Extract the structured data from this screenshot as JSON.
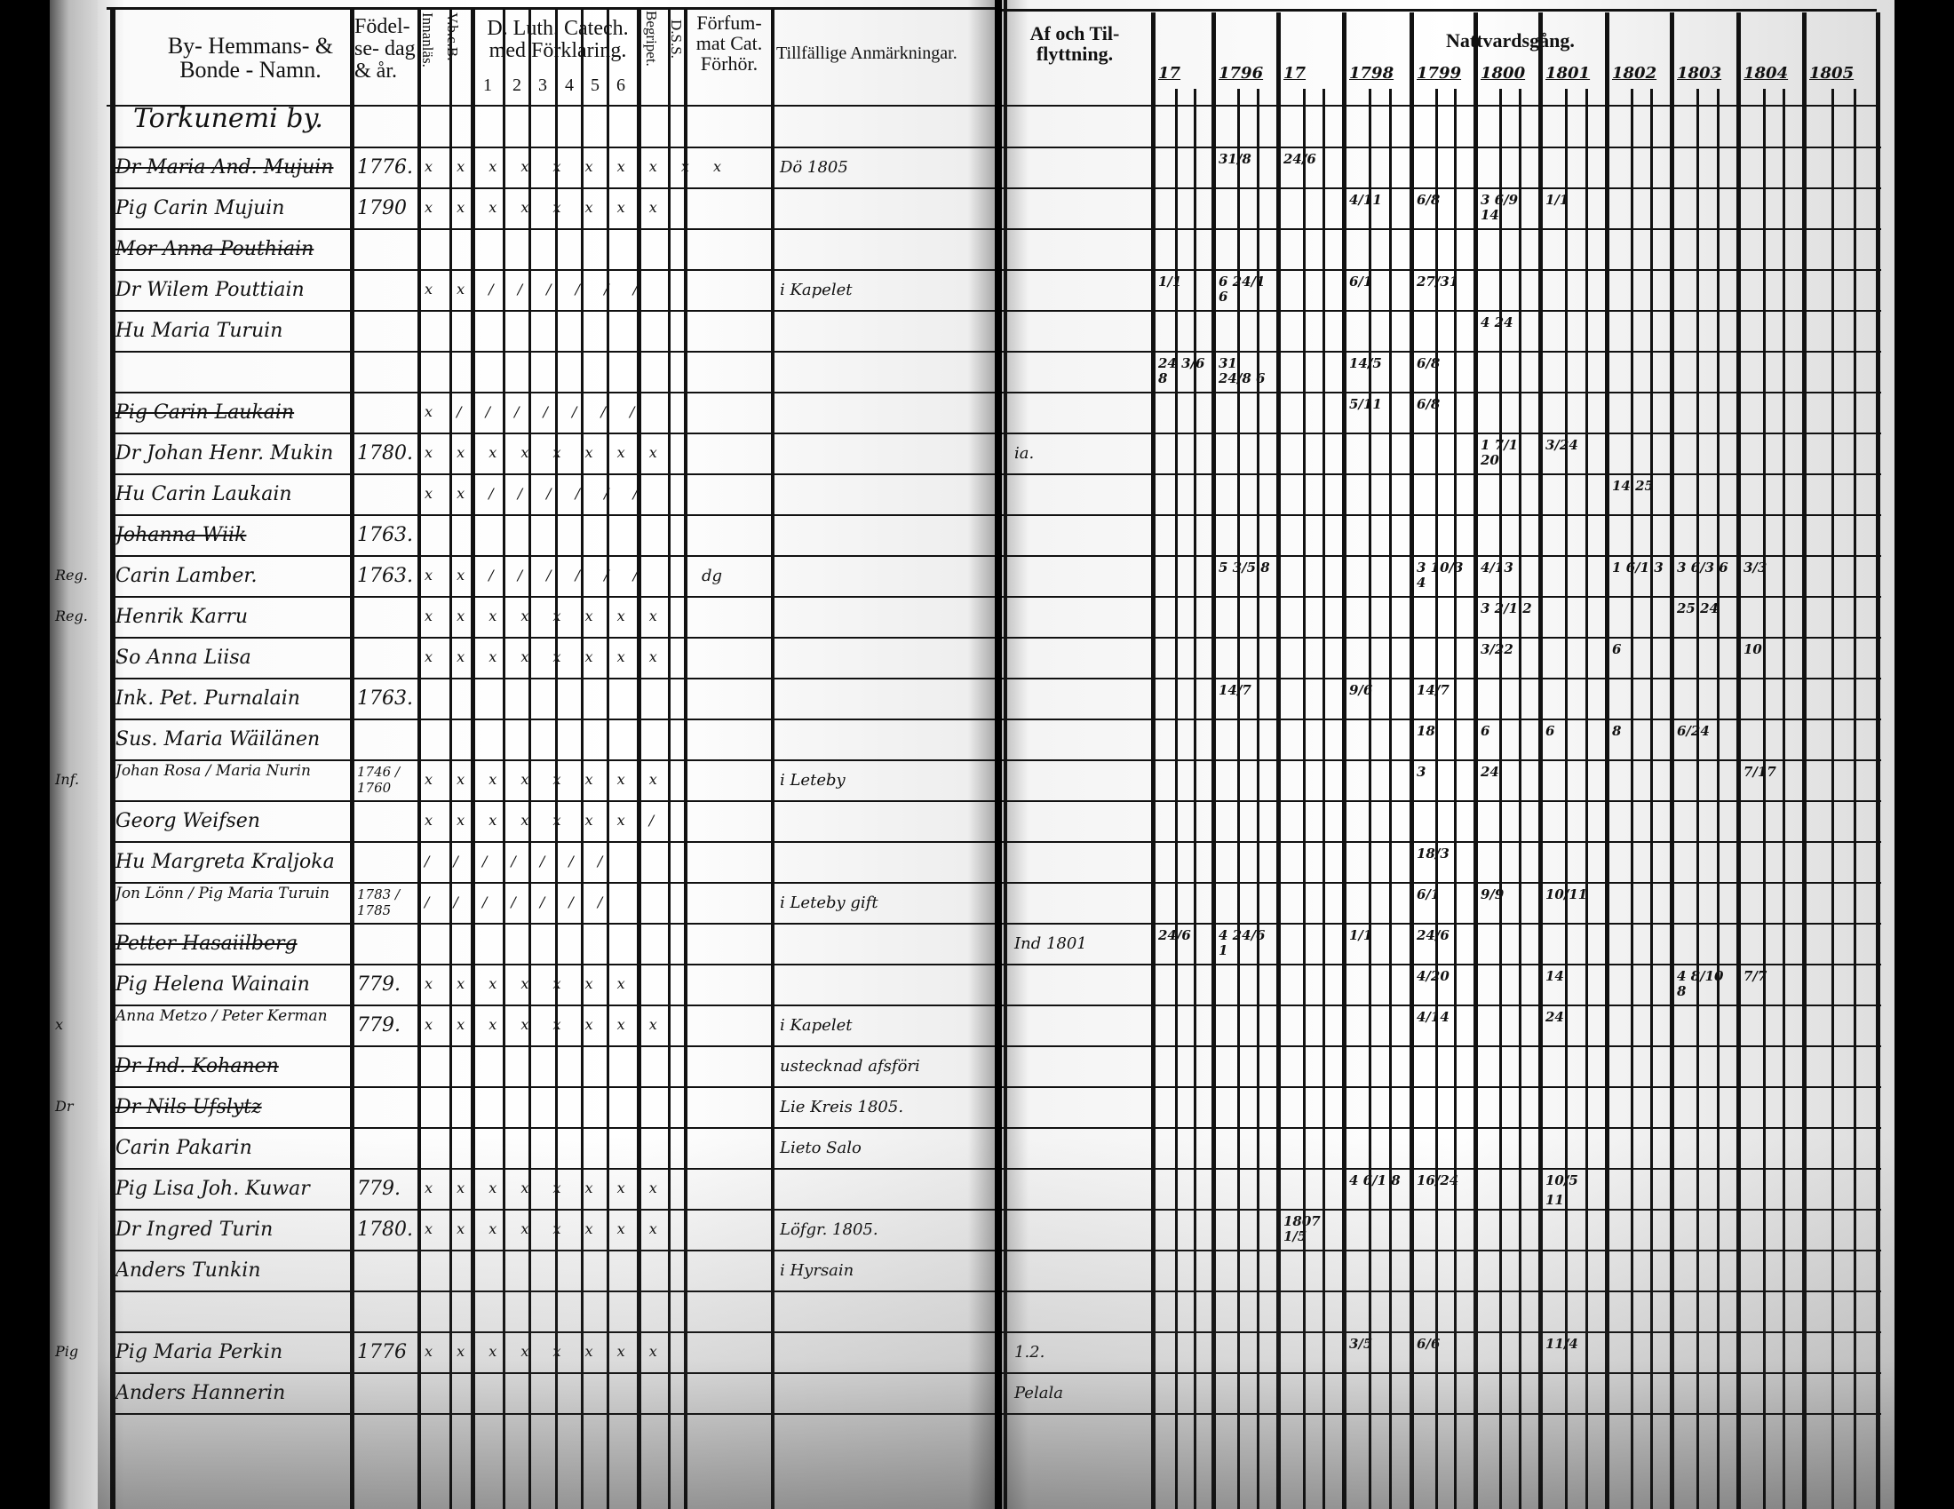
{
  "left_page": {
    "headers": {
      "name": "By- Hemmans- & Bonde - Namn.",
      "birth": "Födel- se- dag & år.",
      "reading": "Innanläs.",
      "vbcb": "V.b.c.B.",
      "catechism": "D. Luth. Catech. med Förklaring.",
      "catechism_parts": [
        "1",
        "2",
        "3",
        "4",
        "5",
        "6"
      ],
      "understanding": "Begripet.",
      "dss": "D.S.S.",
      "neglected": "Förfum- mat Cat. Förhör.",
      "remarks": "Tillfällige Anmärkningar."
    },
    "rows": [
      {
        "name": "Torkunemi by.",
        "year": "",
        "marks": "",
        "remark": "",
        "struck": false,
        "heading": true
      },
      {
        "name": "Dr Maria And. Mujuin",
        "year": "1776.",
        "marks": "x x x x x x x x x x",
        "remark": "Dö 1805",
        "struck": true
      },
      {
        "name": "Pig Carin Mujuin",
        "year": "1790",
        "marks": "x x x x x x x x",
        "remark": "",
        "struck": false
      },
      {
        "name": "Mor Anna Pouthiain",
        "year": "",
        "marks": "",
        "remark": "",
        "struck": true
      },
      {
        "name": "Dr Wilem Pouttiain",
        "year": "",
        "marks": "x x / / / / / /",
        "remark": "i Kapelet",
        "struck": false
      },
      {
        "name": "Hu Maria Turuin",
        "year": "",
        "marks": "",
        "remark": "",
        "struck": false
      },
      {
        "name": "",
        "year": "",
        "marks": "",
        "remark": "",
        "struck": false
      },
      {
        "name": "Pig Carin Laukain",
        "year": "",
        "marks": "x / / / / / / /",
        "remark": "",
        "struck": true
      },
      {
        "name": "Dr Johan Henr. Mukin",
        "year": "1780.",
        "marks": "x x x x x x x x",
        "remark": "",
        "struck": false
      },
      {
        "name": "Hu Carin Laukain",
        "year": "",
        "marks": "x x / / / / / /",
        "remark": "",
        "struck": false
      },
      {
        "name": "Johanna Wiik",
        "year": "1763.",
        "marks": "",
        "remark": "",
        "struck": true
      },
      {
        "name": "Carin Lamber.",
        "year": "1763.",
        "marks": "x x / / / / / /",
        "remark": "dg",
        "struck": false
      },
      {
        "name": "Henrik Karru",
        "year": "",
        "marks": "x x x x x x x x",
        "remark": "",
        "struck": false
      },
      {
        "name": "So Anna Liisa",
        "year": "",
        "marks": "x x x x x x x x",
        "remark": "",
        "struck": false
      },
      {
        "name": "Ink. Pet. Purnalain",
        "year": "1763.",
        "marks": "",
        "remark": "",
        "struck": false
      },
      {
        "name": "Sus. Maria Wäilänen",
        "year": "",
        "marks": "",
        "remark": "",
        "struck": false
      },
      {
        "name": "Johan Rosa / Maria Nurin",
        "year": "1746 / 1760",
        "marks": "x x x x x x x x",
        "remark": "i Leteby",
        "struck": false
      },
      {
        "name": "Georg Weifsen",
        "year": "",
        "marks": "x x x x x x x /",
        "remark": "",
        "struck": false
      },
      {
        "name": "Hu Margreta Kraljoka",
        "year": "",
        "marks": "/ / / / / / /",
        "remark": "",
        "struck": false
      },
      {
        "name": "Jon Lönn / Pig Maria Turuin",
        "year": "1783 / 1785",
        "marks": "/ / / / / / /",
        "remark": "i Leteby gift",
        "struck": false
      },
      {
        "name": "Petter Hasaiilberg",
        "year": "",
        "marks": "",
        "remark": "",
        "struck": true
      },
      {
        "name": "Pig Helena Wainain",
        "year": "779.",
        "marks": "x x x x x x x",
        "remark": "",
        "struck": false
      },
      {
        "name": "Anna Metzo / Peter Kerman",
        "year": "779.",
        "marks": "x x x x x x x x",
        "remark": "i Kapelet",
        "struck": false
      },
      {
        "name": "Dr Ind. Kohanen",
        "year": "",
        "marks": "",
        "remark": "ustecknad afsföri",
        "struck": true
      },
      {
        "name": "Dr Nils Ufslytz",
        "year": "",
        "marks": "",
        "remark": "Lie Kreis 1805.",
        "struck": true
      },
      {
        "name": "Carin Pakarin",
        "year": "",
        "marks": "",
        "remark": "Lieto Salo",
        "struck": false
      },
      {
        "name": "Pig Lisa Joh. Kuwar",
        "year": "779.",
        "marks": "x x x x x x x x",
        "remark": "",
        "struck": false
      },
      {
        "name": "Dr Ingred Turin",
        "year": "1780.",
        "marks": "x x x x x x x x",
        "remark": "Löfgr. 1805.",
        "struck": false
      },
      {
        "name": "Anders Tunkin",
        "year": "",
        "marks": "",
        "remark": "i Hyrsain",
        "struck": false
      },
      {
        "name": "",
        "year": "",
        "marks": "",
        "remark": "",
        "struck": false
      },
      {
        "name": "Pig Maria Perkin",
        "year": "1776",
        "marks": "x x x x x x x x",
        "remark": "",
        "struck": false
      },
      {
        "name": "Anders Hannerin",
        "year": "",
        "marks": "",
        "remark": "",
        "struck": false
      }
    ],
    "margin_notes": [
      {
        "row": 11,
        "text": "Reg."
      },
      {
        "row": 12,
        "text": "Reg."
      },
      {
        "row": 16,
        "text": "Inf."
      },
      {
        "row": 22,
        "text": "x"
      },
      {
        "row": 24,
        "text": "Dr"
      },
      {
        "row": 30,
        "text": "Pig"
      }
    ]
  },
  "right_page": {
    "headers": {
      "moving": "Af och Til- flyttning.",
      "communion": "Nattvardsgång.",
      "years": [
        "17",
        "1796",
        "17",
        "1798",
        "1799",
        "1800",
        "1801",
        "1802",
        "1803",
        "1804",
        "1805"
      ]
    },
    "moving_notes": [
      {
        "row": 8,
        "text": "ia."
      },
      {
        "row": 20,
        "text": "Ind 1801"
      },
      {
        "row": 30,
        "text": "1.2."
      },
      {
        "row": 31,
        "text": "Pelala"
      }
    ],
    "communion_entries": [
      {
        "row": 1,
        "year": "1796",
        "text": "31/8"
      },
      {
        "row": 1,
        "year": "17",
        "text": "24/6"
      },
      {
        "row": 2,
        "year": "1798",
        "text": "4/11"
      },
      {
        "row": 2,
        "year": "1799",
        "text": "6/8"
      },
      {
        "row": 2,
        "year": "1800",
        "text": "3 6/9 14"
      },
      {
        "row": 2,
        "year": "1801",
        "text": "1/1"
      },
      {
        "row": 4,
        "year": "1796",
        "text": "6 24/1 6"
      },
      {
        "row": 4,
        "year": "17",
        "text": "1/1"
      },
      {
        "row": 4,
        "year": "1798",
        "text": "6/1"
      },
      {
        "row": 4,
        "year": "1799",
        "text": "27/31"
      },
      {
        "row": 5,
        "year": "1800",
        "text": "4 24"
      },
      {
        "row": 6,
        "year": "1796",
        "text": "31 24/8 6"
      },
      {
        "row": 6,
        "year": "17",
        "text": "24 3/6 8"
      },
      {
        "row": 6,
        "year": "1798",
        "text": "14/5"
      },
      {
        "row": 6,
        "year": "1799",
        "text": "6/8"
      },
      {
        "row": 7,
        "year": "1798",
        "text": "5/11"
      },
      {
        "row": 7,
        "year": "1799",
        "text": "6/8"
      },
      {
        "row": 8,
        "year": "1800",
        "text": "1 7/1 20"
      },
      {
        "row": 8,
        "year": "1801",
        "text": "3/24"
      },
      {
        "row": 9,
        "year": "1802",
        "text": "14 25"
      },
      {
        "row": 11,
        "year": "1796",
        "text": "5 3/5 8"
      },
      {
        "row": 11,
        "year": "1799",
        "text": "3 10/3 4"
      },
      {
        "row": 11,
        "year": "1800",
        "text": "4/13"
      },
      {
        "row": 11,
        "year": "1802",
        "text": "1 6/1 3"
      },
      {
        "row": 11,
        "year": "1803",
        "text": "3 6/3 6"
      },
      {
        "row": 11,
        "year": "1804",
        "text": "3/3"
      },
      {
        "row": 12,
        "year": "1800",
        "text": "3 2/1 2"
      },
      {
        "row": 12,
        "year": "1803",
        "text": "25 24"
      },
      {
        "row": 13,
        "year": "1800",
        "text": "3/22"
      },
      {
        "row": 13,
        "year": "1802",
        "text": "6"
      },
      {
        "row": 13,
        "year": "1804",
        "text": "10"
      },
      {
        "row": 14,
        "year": "1796",
        "text": "14/7"
      },
      {
        "row": 14,
        "year": "1798",
        "text": "9/6"
      },
      {
        "row": 14,
        "year": "1799",
        "text": "14/7"
      },
      {
        "row": 15,
        "year": "1799",
        "text": "18"
      },
      {
        "row": 15,
        "year": "1800",
        "text": "6"
      },
      {
        "row": 15,
        "year": "1801",
        "text": "6"
      },
      {
        "row": 15,
        "year": "1802",
        "text": "8"
      },
      {
        "row": 15,
        "year": "1803",
        "text": "6/24"
      },
      {
        "row": 16,
        "year": "1799",
        "text": "3"
      },
      {
        "row": 16,
        "year": "1800",
        "text": "24"
      },
      {
        "row": 16,
        "year": "1804",
        "text": "7/17"
      },
      {
        "row": 18,
        "year": "1799",
        "text": "18/3"
      },
      {
        "row": 19,
        "year": "1799",
        "text": "6/1"
      },
      {
        "row": 19,
        "year": "1800",
        "text": "9/9"
      },
      {
        "row": 19,
        "year": "1801",
        "text": "10/11"
      },
      {
        "row": 20,
        "year": "1796",
        "text": "4 24/6 1"
      },
      {
        "row": 20,
        "year": "17",
        "text": "24/6"
      },
      {
        "row": 20,
        "year": "1798",
        "text": "1/1"
      },
      {
        "row": 20,
        "year": "1799",
        "text": "24/6"
      },
      {
        "row": 21,
        "year": "1799",
        "text": "4/20"
      },
      {
        "row": 21,
        "year": "1801",
        "text": "14"
      },
      {
        "row": 21,
        "year": "1803",
        "text": "4 8/10 8"
      },
      {
        "row": 21,
        "year": "1804",
        "text": "7/7"
      },
      {
        "row": 22,
        "year": "1799",
        "text": "4/14"
      },
      {
        "row": 22,
        "year": "1801",
        "text": "24"
      },
      {
        "row": 26,
        "year": "1798",
        "text": "4 6/1 8"
      },
      {
        "row": 26,
        "year": "1799",
        "text": "16/24"
      },
      {
        "row": 26,
        "year": "1801",
        "text": "10/5"
      },
      {
        "row": 26,
        "year": "1801",
        "text": "11"
      },
      {
        "row": 27,
        "year": "17",
        "text": "1807 1/5"
      },
      {
        "row": 30,
        "year": "1798",
        "text": "3/5"
      },
      {
        "row": 30,
        "year": "1799",
        "text": "6/6"
      },
      {
        "row": 30,
        "year": "1801",
        "text": "11/4"
      }
    ]
  }
}
